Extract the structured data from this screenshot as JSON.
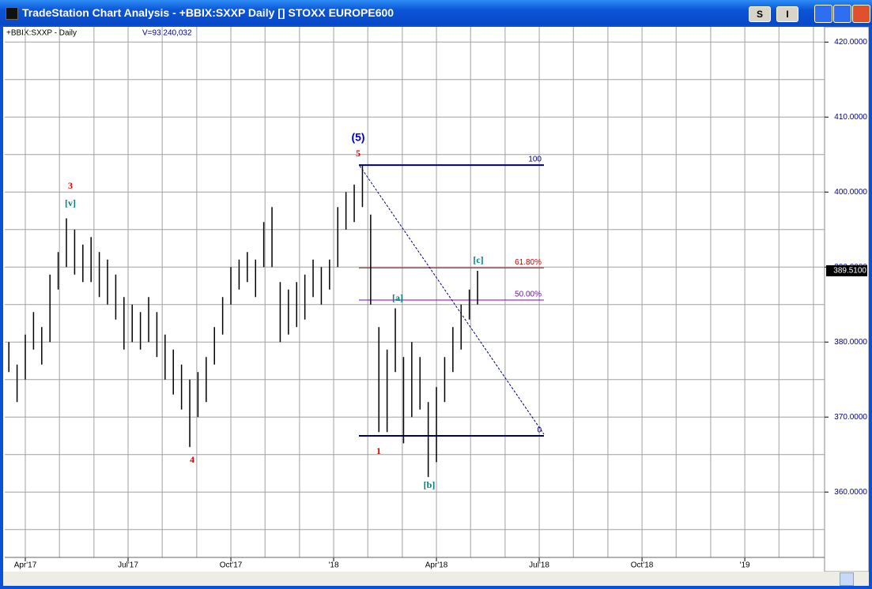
{
  "window": {
    "title": "TradeStation Chart Analysis - +BBIX:SXXP Daily [] STOXX EUROPE600",
    "buttons": [
      "S",
      "I"
    ]
  },
  "chart_data": {
    "type": "ohlc",
    "symbol_label": "+BBIX:SXXP - Daily",
    "volume_label": "V=93,240,032",
    "color": "#000000",
    "x": [
      2017.21,
      2017.23,
      2017.25,
      2017.27,
      2017.29,
      2017.31,
      2017.33,
      2017.35,
      2017.37,
      2017.39,
      2017.41,
      2017.43,
      2017.45,
      2017.47,
      2017.49,
      2017.51,
      2017.53,
      2017.55,
      2017.57,
      2017.59,
      2017.61,
      2017.63,
      2017.65,
      2017.67,
      2017.69,
      2017.71,
      2017.73,
      2017.75,
      2017.77,
      2017.79,
      2017.81,
      2017.83,
      2017.85,
      2017.87,
      2017.89,
      2017.91,
      2017.93,
      2017.95,
      2017.97,
      2017.99,
      2018.01,
      2018.03,
      2018.05,
      2018.07,
      2018.09,
      2018.11,
      2018.13,
      2018.15,
      2018.17,
      2018.19,
      2018.21,
      2018.23,
      2018.25,
      2018.27,
      2018.29,
      2018.31,
      2018.33,
      2018.35
    ],
    "high": [
      380,
      377,
      381,
      384,
      382,
      389,
      392,
      396.5,
      395,
      393,
      394,
      392,
      391,
      389,
      386,
      385,
      384,
      386,
      384,
      381,
      379,
      377,
      375,
      376,
      378,
      382,
      386,
      390,
      391,
      392,
      391,
      396,
      398,
      388,
      387,
      388,
      389,
      391,
      390,
      391,
      398,
      400,
      401,
      403.5,
      397,
      382,
      379,
      384.5,
      378,
      380,
      378,
      372,
      374,
      378,
      382,
      385,
      387,
      389.5
    ],
    "low": [
      376,
      372,
      375,
      379,
      377,
      380,
      387,
      390,
      389,
      388,
      388,
      386,
      385,
      383,
      379,
      380,
      379,
      380,
      378,
      375,
      373,
      371,
      366,
      370,
      372,
      377,
      381,
      385,
      387,
      388,
      386,
      390,
      390,
      380,
      381,
      382,
      383,
      386,
      385,
      387,
      390,
      395,
      396,
      398,
      385,
      368,
      368,
      376,
      366.5,
      370,
      371,
      362,
      364,
      372,
      376,
      379,
      383,
      385
    ],
    "xlim": [
      2017.2,
      2019.194
    ],
    "ylim": [
      351.6,
      421.4
    ],
    "xticks": [
      {
        "value": 2017.25,
        "label": "Apr'17"
      },
      {
        "value": 2017.5,
        "label": "Jul'17"
      },
      {
        "value": 2017.75,
        "label": "Oct'17"
      },
      {
        "value": 2018,
        "label": "'18"
      },
      {
        "value": 2018.25,
        "label": "Apr'18"
      },
      {
        "value": 2018.5,
        "label": "Jul'18"
      },
      {
        "value": 2018.75,
        "label": "Oct'18"
      },
      {
        "value": 2019,
        "label": "'19"
      }
    ],
    "xgrid": [
      2017.333,
      2017.417,
      2017.583,
      2017.667,
      2017.833,
      2017.917,
      2018.083,
      2018.167,
      2018.333,
      2018.417,
      2018.583,
      2018.667,
      2018.833,
      2018.917,
      2019.083,
      2019.167
    ],
    "yticks": [
      {
        "value": 360,
        "label": "360.0000"
      },
      {
        "value": 370,
        "label": "370.0000"
      },
      {
        "value": 380,
        "label": "380.0000"
      },
      {
        "value": 390,
        "label": "390.0000"
      },
      {
        "value": 400,
        "label": "400.0000"
      },
      {
        "value": 410,
        "label": "410.0000"
      },
      {
        "value": 420,
        "label": "420.0000"
      }
    ],
    "ygrid": [
      355,
      365,
      375,
      385,
      395,
      405,
      415
    ],
    "grid": true,
    "last_price": {
      "value": 389.51,
      "label": "389.5100"
    },
    "fib_levels": [
      {
        "name": "100",
        "value": 403.6,
        "color": "#000066"
      },
      {
        "name": "61.80%",
        "value": 389.9,
        "color": "#cc0000"
      },
      {
        "name": "50.00%",
        "value": 385.6,
        "color": "#8000c0"
      },
      {
        "name": "0",
        "value": 367.5,
        "color": "#000066"
      }
    ],
    "annotations": [
      {
        "text": "(5)",
        "color": "#0000cc"
      },
      {
        "text": "5",
        "color": "#e00000"
      },
      {
        "text": "3",
        "color": "#e00000"
      },
      {
        "text": "[v]",
        "color": "#008080"
      },
      {
        "text": "4",
        "color": "#e00000"
      },
      {
        "text": "1",
        "color": "#e00000"
      },
      {
        "text": "[a]",
        "color": "#008080"
      },
      {
        "text": "[b]",
        "color": "#008080"
      },
      {
        "text": "[c]",
        "color": "#008080"
      }
    ]
  }
}
